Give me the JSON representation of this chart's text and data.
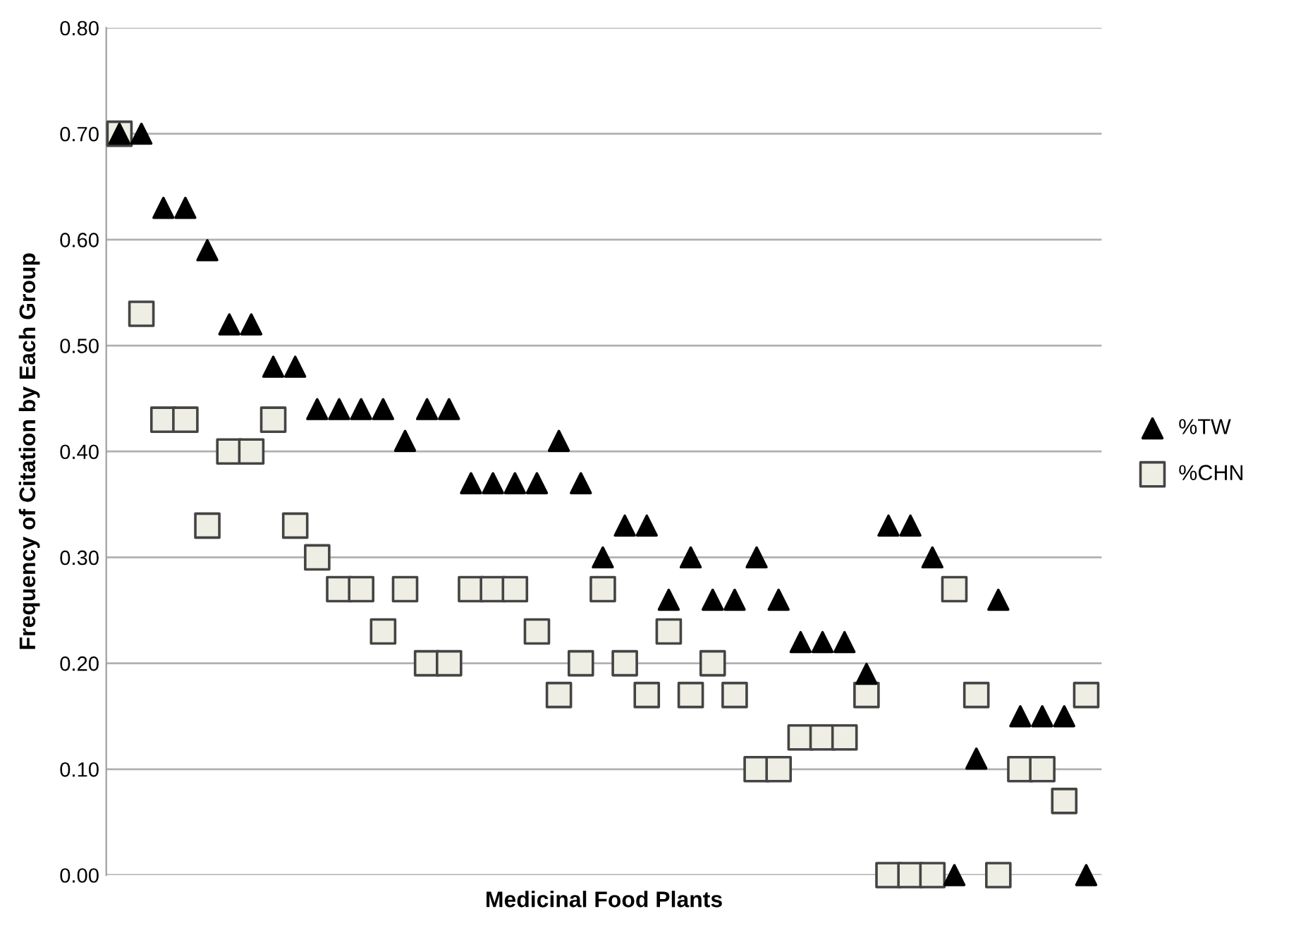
{
  "chart_data": {
    "type": "scatter",
    "xlabel": "Medicinal Food Plants",
    "ylabel": "Frequency of Citation by Each Group",
    "categories": [
      null,
      null,
      null,
      null,
      null,
      null,
      null,
      null,
      null,
      null,
      null,
      null,
      null,
      null,
      null,
      null,
      null,
      null,
      null,
      null,
      null,
      null,
      null,
      null,
      null,
      null,
      null,
      null,
      null,
      null,
      null,
      null,
      null,
      null,
      null,
      null,
      null,
      null,
      null,
      null,
      null,
      null,
      null,
      null,
      null
    ],
    "series": [
      {
        "name": "%TW",
        "color": "#000000",
        "marker": "triangle",
        "values": [
          0.7,
          0.7,
          0.63,
          0.63,
          0.59,
          0.52,
          0.52,
          0.48,
          0.48,
          0.44,
          0.44,
          0.44,
          0.44,
          0.41,
          0.44,
          0.44,
          0.37,
          0.37,
          0.37,
          0.37,
          0.41,
          0.37,
          0.3,
          0.33,
          0.33,
          0.26,
          0.3,
          0.26,
          0.26,
          0.3,
          0.26,
          0.22,
          0.22,
          0.22,
          0.19,
          0.33,
          0.33,
          0.3,
          0.0,
          0.11,
          0.26,
          0.15,
          0.15,
          0.15,
          0.0
        ]
      },
      {
        "name": "%CHN",
        "color": "#eeeee4",
        "marker": "square",
        "values": [
          0.7,
          0.53,
          0.43,
          0.43,
          0.33,
          0.4,
          0.4,
          0.43,
          0.33,
          0.3,
          0.27,
          0.27,
          0.23,
          0.27,
          0.2,
          0.2,
          0.27,
          0.27,
          0.27,
          0.23,
          0.17,
          0.2,
          0.27,
          0.2,
          0.17,
          0.23,
          0.17,
          0.2,
          0.17,
          0.1,
          0.1,
          0.13,
          0.13,
          0.13,
          0.17,
          0.0,
          0.0,
          0.0,
          0.27,
          0.17,
          0.0,
          0.1,
          0.1,
          0.07,
          0.17
        ]
      }
    ],
    "ylim": [
      0,
      0.8
    ],
    "yticks": [
      {
        "value": 0,
        "label": "0.00"
      },
      {
        "value": 0.1,
        "label": "0.10"
      },
      {
        "value": 0.2,
        "label": "0.20"
      },
      {
        "value": 0.3,
        "label": "0.30"
      },
      {
        "value": 0.4,
        "label": "0.40"
      },
      {
        "value": 0.5,
        "label": "0.50"
      },
      {
        "value": 0.6,
        "label": "0.60"
      },
      {
        "value": 0.7,
        "label": "0.70"
      },
      {
        "value": 0.8,
        "label": "0.80"
      }
    ],
    "grid": "y",
    "legend": "right",
    "tick_labels": "y"
  }
}
